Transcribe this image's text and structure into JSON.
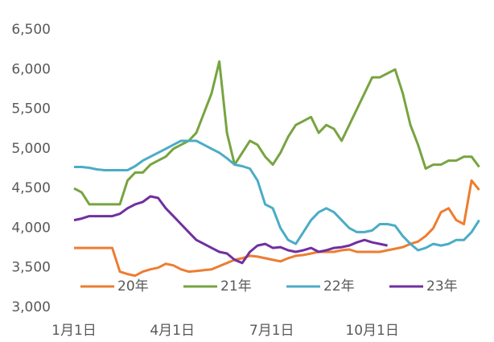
{
  "chart_data": {
    "type": "line",
    "x": [
      0,
      7,
      14,
      21,
      28,
      35,
      42,
      49,
      56,
      63,
      70,
      77,
      84,
      91,
      98,
      105,
      112,
      119,
      126,
      133,
      140,
      147,
      154,
      161,
      168,
      175,
      182,
      189,
      196,
      203,
      210,
      217,
      224,
      231,
      238,
      245,
      252,
      259,
      266,
      273,
      280,
      287,
      294,
      301,
      308,
      315,
      322,
      329,
      336,
      343,
      350,
      357,
      364,
      371
    ],
    "xlim": [
      0,
      372
    ],
    "xticks": [
      {
        "value": 0,
        "label": "1月1日"
      },
      {
        "value": 90,
        "label": "4月1日"
      },
      {
        "value": 181,
        "label": "7月1日"
      },
      {
        "value": 273,
        "label": "10月1日"
      }
    ],
    "ylim": [
      3000,
      6500
    ],
    "yticks": [
      {
        "value": 3000,
        "label": "3,000"
      },
      {
        "value": 3500,
        "label": "3,500"
      },
      {
        "value": 4000,
        "label": "4,000"
      },
      {
        "value": 4500,
        "label": "4,500"
      },
      {
        "value": 5000,
        "label": "5,000"
      },
      {
        "value": 5500,
        "label": "5,500"
      },
      {
        "value": 6000,
        "label": "6,000"
      },
      {
        "value": 6500,
        "label": "6,500"
      }
    ],
    "grid": false,
    "legend": "bottom",
    "series": [
      {
        "name": "20年",
        "color": "#ED7D31",
        "values": [
          3750,
          3750,
          3750,
          3750,
          3750,
          3750,
          3450,
          3420,
          3400,
          3450,
          3480,
          3500,
          3550,
          3530,
          3480,
          3450,
          3460,
          3470,
          3480,
          3520,
          3560,
          3600,
          3620,
          3650,
          3640,
          3620,
          3600,
          3580,
          3620,
          3650,
          3660,
          3680,
          3700,
          3700,
          3700,
          3720,
          3730,
          3700,
          3700,
          3700,
          3700,
          3720,
          3740,
          3760,
          3800,
          3830,
          3900,
          4000,
          4200,
          4250,
          4100,
          4050,
          4600,
          4480
        ]
      },
      {
        "name": "21年",
        "color": "#77A441",
        "values": [
          4500,
          4450,
          4300,
          4300,
          4300,
          4300,
          4300,
          4600,
          4700,
          4700,
          4800,
          4850,
          4900,
          5000,
          5050,
          5100,
          5200,
          5450,
          5700,
          6100,
          5200,
          4800,
          4950,
          5100,
          5050,
          4900,
          4800,
          4950,
          5150,
          5300,
          5350,
          5400,
          5200,
          5300,
          5250,
          5100,
          5300,
          5500,
          5700,
          5900,
          5900,
          5950,
          6000,
          5700,
          5300,
          5050,
          4750,
          4800,
          4800,
          4850,
          4850,
          4900,
          4900,
          4770
        ]
      },
      {
        "name": "22年",
        "color": "#4BACC6",
        "values": [
          4770,
          4770,
          4760,
          4740,
          4730,
          4730,
          4730,
          4730,
          4780,
          4850,
          4900,
          4950,
          5000,
          5050,
          5100,
          5100,
          5100,
          5050,
          5000,
          4950,
          4880,
          4800,
          4780,
          4750,
          4600,
          4300,
          4250,
          4000,
          3850,
          3800,
          3950,
          4100,
          4200,
          4250,
          4200,
          4100,
          4000,
          3950,
          3950,
          3970,
          4050,
          4050,
          4030,
          3900,
          3800,
          3720,
          3750,
          3800,
          3780,
          3800,
          3850,
          3850,
          3950,
          4100
        ]
      },
      {
        "name": "23年",
        "color": "#7030A0",
        "values": [
          4100,
          4120,
          4150,
          4150,
          4150,
          4150,
          4180,
          4250,
          4300,
          4330,
          4400,
          4380,
          4250,
          4150,
          4050,
          3950,
          3850,
          3800,
          3750,
          3700,
          3680,
          3600,
          3560,
          3700,
          3780,
          3800,
          3750,
          3760,
          3720,
          3700,
          3720,
          3750,
          3700,
          3720,
          3750,
          3760,
          3780,
          3820,
          3850,
          3820,
          3800,
          3780,
          null,
          null,
          null,
          null,
          null,
          null,
          null,
          null,
          null,
          null,
          null,
          null
        ]
      }
    ]
  }
}
